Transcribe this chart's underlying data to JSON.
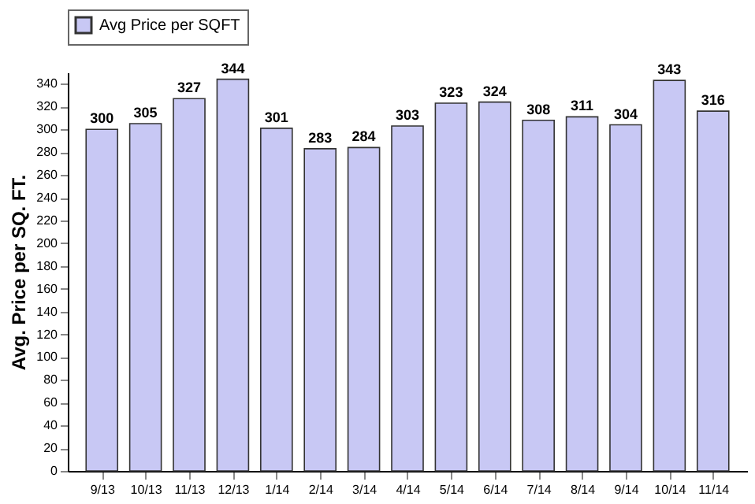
{
  "chart_data": {
    "type": "bar",
    "ylabel": "Avg. Price per SQ. FT.",
    "categories": [
      "9/13",
      "10/13",
      "11/13",
      "12/13",
      "1/14",
      "2/14",
      "3/14",
      "4/14",
      "5/14",
      "6/14",
      "7/14",
      "8/14",
      "9/14",
      "10/14",
      "11/14"
    ],
    "series": [
      {
        "name": "Avg Price per SQFT",
        "color": "#c8c8f4",
        "values": [
          300,
          305,
          327,
          344,
          301,
          283,
          284,
          303,
          323,
          324,
          308,
          311,
          304,
          343,
          316
        ]
      }
    ],
    "ylim": [
      0,
      350
    ],
    "yticks": [
      0,
      20,
      40,
      60,
      80,
      100,
      120,
      140,
      160,
      180,
      200,
      220,
      240,
      260,
      280,
      300,
      320,
      340
    ],
    "grid": false,
    "legend": "top",
    "data_labels": true
  }
}
